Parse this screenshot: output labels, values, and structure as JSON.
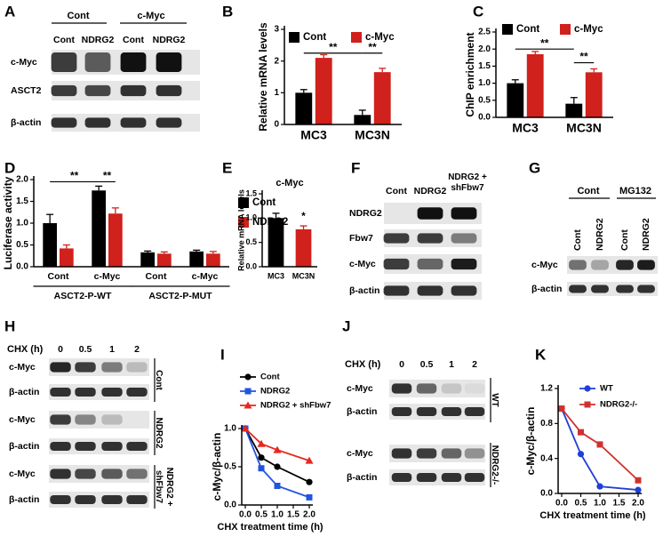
{
  "chart_data": [
    {
      "type": "bar",
      "label": "B",
      "ylabel": "Relative mRNA levels",
      "categories": [
        "MC3",
        "MC3N"
      ],
      "series": [
        {
          "name": "Cont",
          "color": "#000000",
          "values": [
            1.0,
            0.3
          ],
          "errors": [
            0.1,
            0.15
          ]
        },
        {
          "name": "c-Myc",
          "color": "#d0211c",
          "values": [
            2.1,
            1.65
          ],
          "errors": [
            0.1,
            0.12
          ]
        }
      ],
      "ylim": [
        0,
        3
      ],
      "yticks": [
        0,
        1,
        2,
        3
      ],
      "annotations": [
        "**",
        "**"
      ]
    },
    {
      "type": "bar",
      "label": "C",
      "ylabel": "ChIP enrichment",
      "categories": [
        "MC3",
        "MC3N"
      ],
      "series": [
        {
          "name": "Cont",
          "color": "#000000",
          "values": [
            1.0,
            0.4
          ],
          "errors": [
            0.1,
            0.18
          ]
        },
        {
          "name": "c-Myc",
          "color": "#d0211c",
          "values": [
            1.85,
            1.32
          ],
          "errors": [
            0.08,
            0.1
          ]
        }
      ],
      "ylim": [
        0,
        2.5
      ],
      "yticks": [
        {
          "value": 0,
          "label": "0.0"
        },
        0.5,
        {
          "value": 1,
          "label": "1.0"
        },
        1.5,
        {
          "value": 2,
          "label": "2.0"
        },
        2.5
      ],
      "annotations": [
        "**",
        "**"
      ]
    },
    {
      "type": "bar",
      "label": "D",
      "ylabel": "Luciferase activity",
      "categories": [
        "Cont",
        "c-Myc",
        "Cont",
        "c-Myc"
      ],
      "groups": [
        "ASCT2-P-WT",
        "ASCT2-P-MUT"
      ],
      "series": [
        {
          "name": "Cont",
          "color": "#000000",
          "values": [
            1.0,
            1.75,
            0.33,
            0.35
          ],
          "errors": [
            0.2,
            0.1,
            0.03,
            0.03
          ]
        },
        {
          "name": "NDRG2",
          "color": "#d0211c",
          "values": [
            0.42,
            1.22,
            0.3,
            0.3
          ],
          "errors": [
            0.08,
            0.13,
            0.04,
            0.05
          ]
        }
      ],
      "ylim": [
        0,
        2
      ],
      "yticks": [
        {
          "value": 0,
          "label": "0.0"
        },
        0.5,
        {
          "value": 1,
          "label": "1.0"
        },
        1.5,
        {
          "value": 2,
          "label": "2.0"
        }
      ],
      "annotations": [
        "**",
        "**"
      ]
    },
    {
      "type": "bar",
      "label": "E",
      "title": "c-Myc",
      "ylabel": "Relative mRNA levels",
      "categories": [
        "MC3",
        "MC3N"
      ],
      "values": [
        1.0,
        0.77
      ],
      "errors": [
        0.1,
        0.07
      ],
      "colors": [
        "#000000",
        "#d0211c"
      ],
      "ylim": [
        0,
        1.5
      ],
      "yticks": [
        {
          "value": 0,
          "label": "0.0"
        },
        0.5,
        {
          "value": 1,
          "label": "1.0"
        },
        1.5
      ],
      "annotations": [
        "*"
      ]
    },
    {
      "type": "line",
      "label": "I",
      "ylabel": "c-Myc/β-actin",
      "xlabel": "CHX treatment time (h)",
      "x": [
        0,
        0.5,
        1,
        2
      ],
      "series": [
        {
          "name": "Cont",
          "color": "#000000",
          "marker": "circle",
          "values": [
            1,
            0.62,
            0.5,
            0.3
          ]
        },
        {
          "name": "NDRG2",
          "color": "#2155e0",
          "marker": "square",
          "values": [
            1,
            0.48,
            0.25,
            0.1
          ]
        },
        {
          "name": "NDRG2 + shFbw7",
          "color": "#e8261e",
          "marker": "triangle",
          "values": [
            1,
            0.8,
            0.72,
            0.58
          ]
        }
      ],
      "xlim": [
        0,
        2
      ],
      "xticks": [
        {
          "value": 0,
          "label": "0.0"
        },
        0.5,
        {
          "value": 1,
          "label": "1.0"
        },
        1.5,
        {
          "value": 2,
          "label": "2.0"
        }
      ],
      "ylim": [
        0,
        1
      ],
      "yticks": [
        {
          "value": 0,
          "label": "0.0"
        },
        0.5,
        {
          "value": 1,
          "label": "1.0"
        }
      ]
    },
    {
      "type": "line",
      "label": "K",
      "ylabel": "c-Myc/β-actin",
      "xlabel": "CHX treatment time (h)",
      "x": [
        0,
        0.5,
        1,
        2
      ],
      "series": [
        {
          "name": "WT",
          "color": "#1f3fd6",
          "marker": "circle",
          "values": [
            0.97,
            0.45,
            0.08,
            0.04
          ]
        },
        {
          "name": "NDRG2-/-",
          "color": "#d0312d",
          "marker": "square",
          "values": [
            0.97,
            0.7,
            0.56,
            0.15
          ]
        }
      ],
      "xlim": [
        0,
        2
      ],
      "xticks": [
        {
          "value": 0,
          "label": "0.0"
        },
        0.5,
        {
          "value": 1,
          "label": "1.0"
        },
        1.5,
        {
          "value": 2,
          "label": "2.0"
        }
      ],
      "ylim": [
        0,
        1.2
      ],
      "yticks": [
        {
          "value": 0,
          "label": "0.0"
        },
        0.4,
        0.8,
        1.2
      ]
    }
  ],
  "blots": [
    {
      "label": "A",
      "groups": [
        "Cont",
        "c-Myc"
      ],
      "lanes": [
        "Cont",
        "NDRG2",
        "Cont",
        "NDRG2"
      ],
      "blocks": [
        {
          "rows": [
            "c-Myc",
            "ASCT2",
            "β-actin"
          ]
        }
      ]
    },
    {
      "label": "F",
      "lanes": [
        "Cont",
        "NDRG2",
        "NDRG2 + shFbw7"
      ],
      "blocks": [
        {
          "rows": [
            "NDRG2",
            "Fbw7",
            "c-Myc",
            "β-actin"
          ]
        }
      ]
    },
    {
      "label": "G",
      "groups": [
        "Cont",
        "MG132"
      ],
      "lanes": [
        "Cont",
        "NDRG2",
        "Cont",
        "NDRG2"
      ],
      "blocks": [
        {
          "rows": [
            "c-Myc",
            "β-actin"
          ]
        }
      ]
    },
    {
      "label": "H",
      "axis_label": "CHX (h)",
      "lanes": [
        "0",
        "0.5",
        "1",
        "2"
      ],
      "blocks": [
        {
          "name": "Cont",
          "rows": [
            "c-Myc",
            "β-actin"
          ]
        },
        {
          "name": "NDRG2",
          "rows": [
            "c-Myc",
            "β-actin"
          ]
        },
        {
          "name": "NDRG2 + shFbw7",
          "rows": [
            "c-Myc",
            "β-actin"
          ]
        }
      ]
    },
    {
      "label": "J",
      "axis_label": "CHX (h)",
      "lanes": [
        "0",
        "0.5",
        "1",
        "2"
      ],
      "blocks": [
        {
          "name": "WT",
          "rows": [
            "c-Myc",
            "β-actin"
          ]
        },
        {
          "name": "NDRG2-/-",
          "rows": [
            "c-Myc",
            "β-actin"
          ]
        }
      ]
    }
  ]
}
